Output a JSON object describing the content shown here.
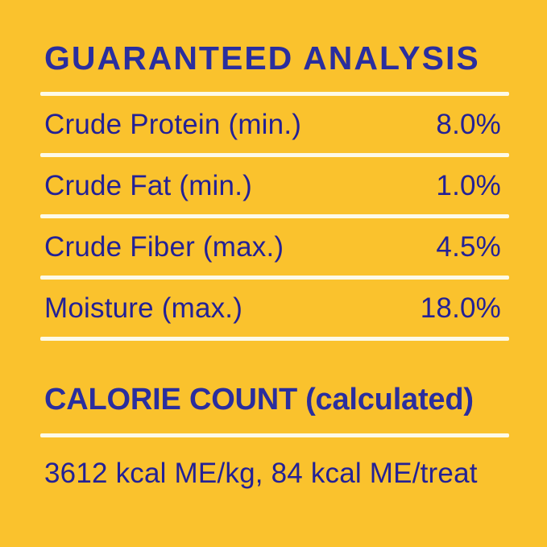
{
  "theme": {
    "background_color": "#FAC22D",
    "heading_color": "#2A2E9E",
    "body_text_color": "#232196",
    "divider_color": "#FDFAE8"
  },
  "guaranteed_analysis": {
    "title": "GUARANTEED ANALYSIS",
    "rows": [
      {
        "label": "Crude Protein (min.)",
        "value": "8.0%"
      },
      {
        "label": "Crude Fat (min.)",
        "value": "1.0%"
      },
      {
        "label": "Crude Fiber (max.)",
        "value": "4.5%"
      },
      {
        "label": "Moisture (max.)",
        "value": "18.0%"
      }
    ]
  },
  "calorie_count": {
    "title": "CALORIE COUNT",
    "title_suffix": "(calculated)",
    "value": "3612 kcal ME/kg, 84 kcal ME/treat"
  }
}
